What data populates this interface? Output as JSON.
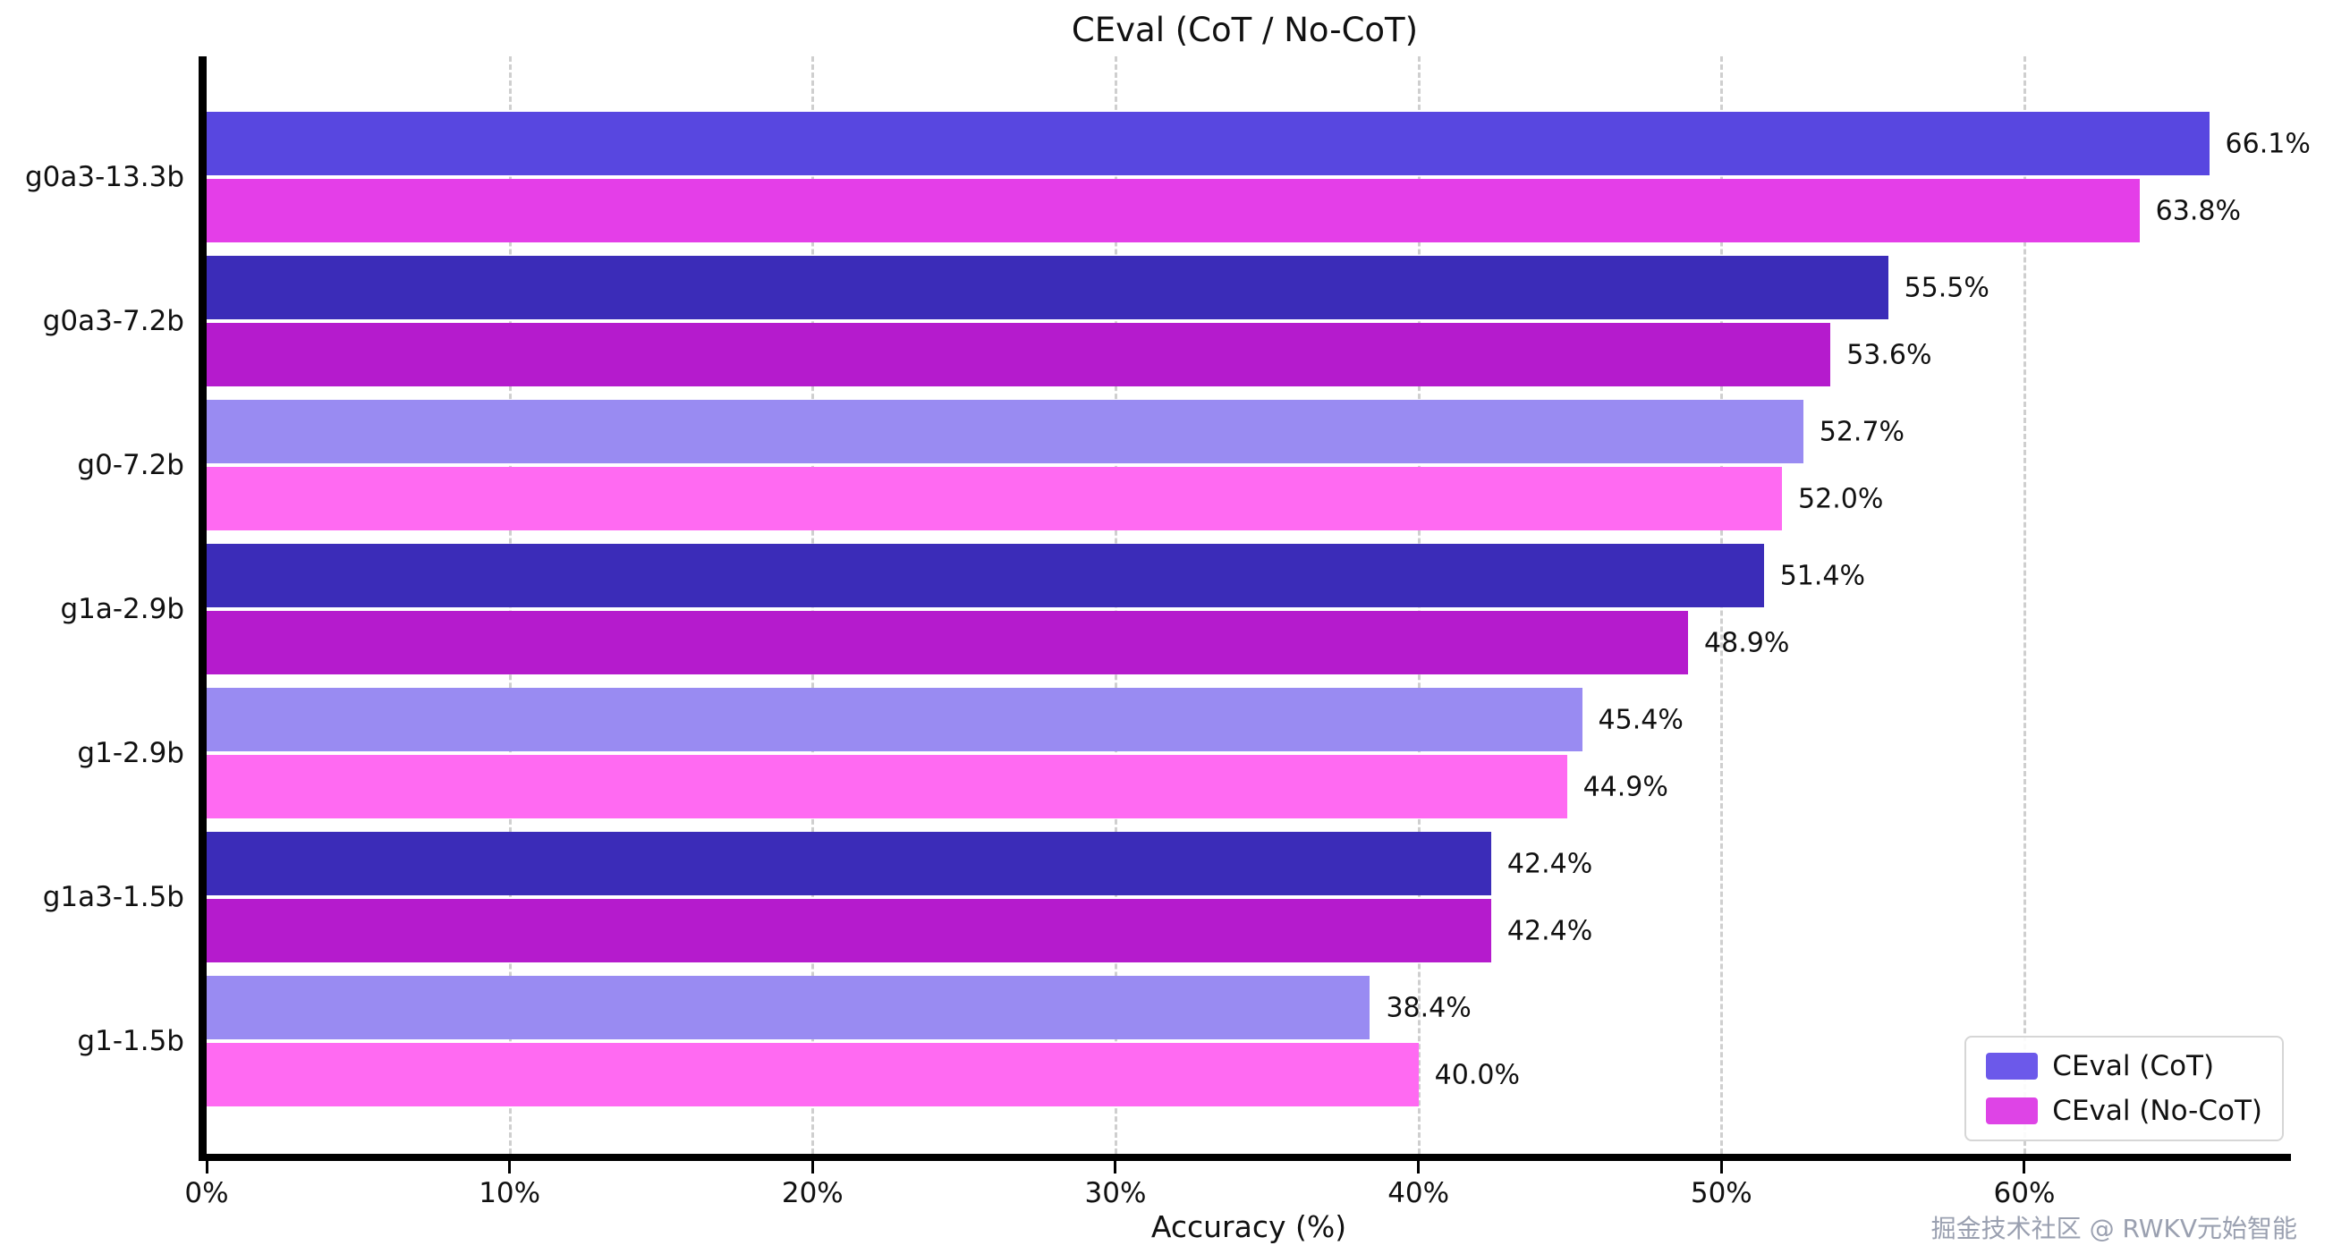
{
  "title": "CEval (CoT / No-CoT)",
  "xlabel": "Accuracy (%)",
  "watermark": "掘金技术社区 @ RWKV元始智能",
  "legend": {
    "items": [
      {
        "label": "CEval (CoT)",
        "color": "#6c59ea"
      },
      {
        "label": "CEval (No-CoT)",
        "color": "#de44e6"
      }
    ]
  },
  "chart_data": {
    "type": "bar",
    "orientation": "horizontal",
    "title": "CEval (CoT / No-CoT)",
    "xlabel": "Accuracy (%)",
    "ylabel": "",
    "categories": [
      "g0a3-13.3b",
      "g0a3-7.2b",
      "g0-7.2b",
      "g1a-2.9b",
      "g1-2.9b",
      "g1a3-1.5b",
      "g1-1.5b"
    ],
    "series": [
      {
        "name": "CEval (CoT)",
        "values": [
          66.1,
          55.5,
          52.7,
          51.4,
          45.4,
          42.4,
          38.4
        ]
      },
      {
        "name": "CEval (No-CoT)",
        "values": [
          63.8,
          53.6,
          52.0,
          48.9,
          44.9,
          42.4,
          40.0
        ]
      }
    ],
    "value_label_format": "{value}%",
    "xlim": [
      0,
      68.8
    ],
    "xticks": [
      0,
      10,
      20,
      30,
      40,
      50,
      60
    ],
    "xtick_labels": [
      "0%",
      "10%",
      "20%",
      "30%",
      "40%",
      "50%",
      "60%"
    ],
    "grid": "vertical-dashed",
    "grid_color": "#cfcfcf",
    "legend_position": "lower right",
    "bar_colors": {
      "cot": [
        "#5847e0",
        "#3b2cb8",
        "#998bf2",
        "#3b2cb8",
        "#998bf2",
        "#3b2cb8",
        "#998bf2"
      ],
      "nocot": [
        "#e43ee8",
        "#b51bcd",
        "#ff6af2",
        "#b51bcd",
        "#ff6af2",
        "#b51bcd",
        "#ff6af2"
      ]
    }
  }
}
